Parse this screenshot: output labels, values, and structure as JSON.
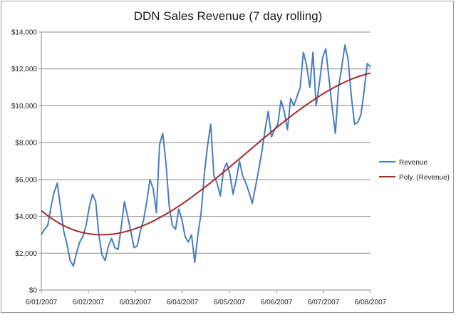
{
  "chart_data": {
    "type": "line",
    "title": "DDN Sales Revenue (7 day rolling)",
    "xlabel": "",
    "ylabel": "",
    "ylim": [
      0,
      14000
    ],
    "y_ticks": [
      "$0",
      "$2,000",
      "$4,000",
      "$6,000",
      "$8,000",
      "$10,000",
      "$12,000",
      "$14,000"
    ],
    "y_tick_values": [
      0,
      2000,
      4000,
      6000,
      8000,
      10000,
      12000,
      14000
    ],
    "x_tick_labels": [
      "6/01/2007",
      "6/02/2007",
      "6/03/2007",
      "6/04/2007",
      "6/05/2007",
      "6/06/2007",
      "6/07/2007",
      "6/08/2007"
    ],
    "grid": true,
    "legend_position": "right",
    "series": [
      {
        "name": "Revenue",
        "color": "#4a7ebb",
        "x_start": "6/01/2007",
        "x_end": "6/08/2007",
        "values": [
          3000,
          3300,
          3500,
          4500,
          5300,
          5800,
          4500,
          3200,
          2500,
          1600,
          1300,
          2000,
          2600,
          2900,
          3500,
          4500,
          5200,
          4800,
          3000,
          1900,
          1600,
          2400,
          2800,
          2300,
          2200,
          3400,
          4800,
          4000,
          3200,
          2300,
          2400,
          3200,
          3800,
          4800,
          6000,
          5500,
          4200,
          7900,
          8500,
          6900,
          4600,
          3500,
          3300,
          4400,
          3800,
          2900,
          2600,
          3000,
          1500,
          3000,
          4200,
          6300,
          7800,
          9000,
          6200,
          5800,
          5100,
          6500,
          6900,
          6300,
          5200,
          6000,
          7000,
          6200,
          5800,
          5300,
          4700,
          5600,
          6500,
          7500,
          8700,
          9700,
          8300,
          8700,
          9000,
          10300,
          9700,
          8700,
          10400,
          10000,
          10500,
          11000,
          12900,
          12200,
          11000,
          12900,
          10000,
          11200,
          12600,
          13100,
          11500,
          9900,
          8500,
          11000,
          12100,
          13300,
          12500,
          10500,
          9000,
          9100,
          9500,
          10800,
          12300,
          12100
        ]
      },
      {
        "name": "Poly. (Revenue)",
        "color": "#a52a2a"
      }
    ]
  }
}
